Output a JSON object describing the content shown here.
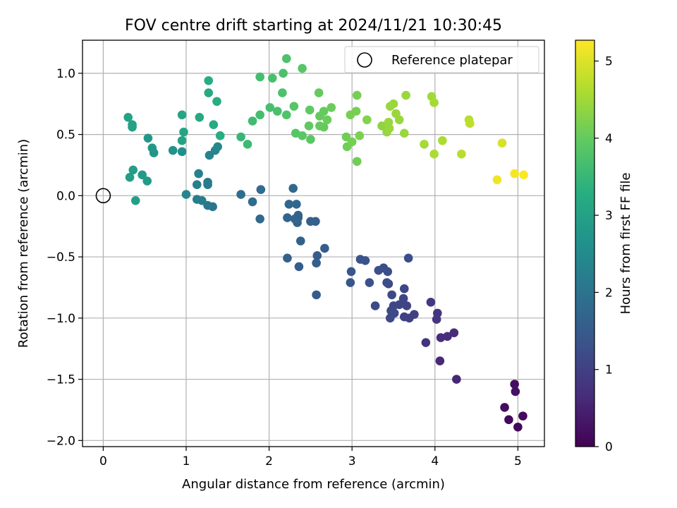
{
  "chart_data": {
    "type": "scatter",
    "title": "FOV centre drift starting at 2024/11/21 10:30:45",
    "xlabel": "Angular distance from reference (arcmin)",
    "ylabel": "Rotation from reference (arcmin)",
    "xlim": [
      -0.25,
      5.32
    ],
    "ylim": [
      -2.05,
      1.27
    ],
    "xticks": [
      0,
      1,
      2,
      3,
      4,
      5
    ],
    "yticks": [
      -2.0,
      -1.5,
      -1.0,
      -0.5,
      0.0,
      0.5,
      1.0
    ],
    "xtick_labels": [
      "0",
      "1",
      "2",
      "3",
      "4",
      "5"
    ],
    "ytick_labels": [
      "−2.0",
      "−1.5",
      "−1.0",
      "−0.5",
      "0.0",
      "0.5",
      "1.0"
    ],
    "grid": true,
    "legend": {
      "position": "top-right",
      "entries": [
        "Reference platepar"
      ]
    },
    "colorbar": {
      "label": "Hours from first FF file",
      "colormap": "viridis",
      "range": [
        0,
        5.27
      ],
      "ticks": [
        0,
        1,
        2,
        3,
        4,
        5
      ],
      "tick_labels": [
        "0",
        "1",
        "2",
        "3",
        "4",
        "5"
      ]
    },
    "reference_point": {
      "name": "Reference platepar",
      "x": 0.0,
      "y": 0.0
    },
    "series": [
      {
        "name": "FOV centre",
        "points": [
          [
            4.96,
            -1.54,
            0.2
          ],
          [
            4.97,
            -1.6,
            0.25
          ],
          [
            5.06,
            -1.8,
            0.15
          ],
          [
            5.0,
            -1.89,
            0.1
          ],
          [
            4.89,
            -1.83,
            0.12
          ],
          [
            4.84,
            -1.73,
            0.18
          ],
          [
            4.26,
            -1.5,
            0.55
          ],
          [
            4.23,
            -1.12,
            0.65
          ],
          [
            4.15,
            -1.15,
            0.7
          ],
          [
            4.07,
            -1.16,
            0.68
          ],
          [
            4.06,
            -1.35,
            0.6
          ],
          [
            3.89,
            -1.2,
            0.75
          ],
          [
            4.03,
            -0.96,
            0.8
          ],
          [
            4.02,
            -1.01,
            0.82
          ],
          [
            3.95,
            -0.87,
            0.85
          ],
          [
            3.75,
            -0.97,
            1.0
          ],
          [
            3.69,
            -1.0,
            1.0
          ],
          [
            3.63,
            -0.99,
            1.02
          ],
          [
            3.66,
            -0.9,
            1.05
          ],
          [
            3.62,
            -0.84,
            1.08
          ],
          [
            3.63,
            -0.76,
            1.1
          ],
          [
            3.57,
            -0.89,
            1.1
          ],
          [
            3.5,
            -0.9,
            1.12
          ],
          [
            3.47,
            -0.94,
            1.15
          ],
          [
            3.46,
            -1.0,
            1.15
          ],
          [
            3.51,
            -0.96,
            1.15
          ],
          [
            3.48,
            -0.81,
            1.18
          ],
          [
            3.44,
            -0.72,
            1.2
          ],
          [
            3.42,
            -0.71,
            1.22
          ],
          [
            3.43,
            -0.62,
            1.22
          ],
          [
            3.38,
            -0.59,
            1.25
          ],
          [
            3.32,
            -0.61,
            1.28
          ],
          [
            3.28,
            -0.9,
            1.2
          ],
          [
            3.21,
            -0.71,
            1.3
          ],
          [
            3.16,
            -0.53,
            1.35
          ],
          [
            3.1,
            -0.52,
            1.35
          ],
          [
            2.98,
            -0.71,
            1.4
          ],
          [
            2.99,
            -0.62,
            1.42
          ],
          [
            3.68,
            -0.51,
            1.25
          ],
          [
            2.67,
            -0.43,
            1.55
          ],
          [
            2.58,
            -0.49,
            1.55
          ],
          [
            2.57,
            -0.55,
            1.57
          ],
          [
            2.57,
            -0.81,
            1.5
          ],
          [
            2.56,
            -0.21,
            1.6
          ],
          [
            2.5,
            -0.21,
            1.6
          ],
          [
            2.38,
            -0.37,
            1.62
          ],
          [
            2.34,
            -0.22,
            1.65
          ],
          [
            2.35,
            -0.18,
            1.65
          ],
          [
            2.35,
            -0.16,
            1.67
          ],
          [
            2.36,
            -0.58,
            1.55
          ],
          [
            2.31,
            -0.19,
            1.68
          ],
          [
            2.22,
            -0.51,
            1.6
          ],
          [
            2.22,
            -0.18,
            1.7
          ],
          [
            2.24,
            -0.07,
            1.72
          ],
          [
            2.33,
            -0.07,
            1.75
          ],
          [
            2.29,
            0.06,
            1.78
          ],
          [
            1.9,
            0.05,
            1.85
          ],
          [
            1.89,
            -0.19,
            1.82
          ],
          [
            1.8,
            -0.05,
            1.88
          ],
          [
            1.66,
            0.01,
            1.92
          ],
          [
            1.32,
            -0.09,
            2.05
          ],
          [
            1.26,
            -0.08,
            2.1
          ],
          [
            1.26,
            0.11,
            2.15
          ],
          [
            1.26,
            0.09,
            2.15
          ],
          [
            1.19,
            -0.04,
            2.2
          ],
          [
            1.13,
            -0.03,
            2.22
          ],
          [
            1.13,
            0.09,
            2.25
          ],
          [
            1.15,
            0.18,
            2.28
          ],
          [
            1.0,
            0.01,
            2.4
          ],
          [
            1.28,
            0.33,
            2.35
          ],
          [
            1.35,
            0.37,
            2.4
          ],
          [
            1.38,
            0.4,
            2.42
          ],
          [
            0.95,
            0.36,
            2.6
          ],
          [
            0.84,
            0.37,
            2.65
          ],
          [
            0.61,
            0.35,
            2.75
          ],
          [
            0.59,
            0.39,
            2.78
          ],
          [
            0.54,
            0.47,
            2.8
          ],
          [
            0.53,
            0.12,
            2.82
          ],
          [
            0.47,
            0.17,
            2.85
          ],
          [
            0.36,
            0.21,
            2.9
          ],
          [
            0.32,
            0.15,
            2.92
          ],
          [
            0.39,
            -0.04,
            2.95
          ],
          [
            0.35,
            0.56,
            3.0
          ],
          [
            0.35,
            0.58,
            3.0
          ],
          [
            0.3,
            0.64,
            3.02
          ],
          [
            0.95,
            0.45,
            3.05
          ],
          [
            0.97,
            0.52,
            3.1
          ],
          [
            0.95,
            0.66,
            3.1
          ],
          [
            1.16,
            0.64,
            3.15
          ],
          [
            1.33,
            0.58,
            3.2
          ],
          [
            1.41,
            0.49,
            3.25
          ],
          [
            1.27,
            0.84,
            3.2
          ],
          [
            1.37,
            0.77,
            3.25
          ],
          [
            1.27,
            0.94,
            3.25
          ],
          [
            1.66,
            0.48,
            3.5
          ],
          [
            1.74,
            0.42,
            3.55
          ],
          [
            1.8,
            0.61,
            3.6
          ],
          [
            1.89,
            0.66,
            3.65
          ],
          [
            1.89,
            0.97,
            3.65
          ],
          [
            2.04,
            0.96,
            3.7
          ],
          [
            2.01,
            0.72,
            3.7
          ],
          [
            2.1,
            0.69,
            3.72
          ],
          [
            2.16,
            0.84,
            3.75
          ],
          [
            2.17,
            1.0,
            3.75
          ],
          [
            2.21,
            1.12,
            3.75
          ],
          [
            2.21,
            0.66,
            3.8
          ],
          [
            2.3,
            0.73,
            3.85
          ],
          [
            2.32,
            0.51,
            3.85
          ],
          [
            2.4,
            1.04,
            3.85
          ],
          [
            2.4,
            0.49,
            3.9
          ],
          [
            2.5,
            0.46,
            3.9
          ],
          [
            2.49,
            0.7,
            3.95
          ],
          [
            2.48,
            0.57,
            3.95
          ],
          [
            2.6,
            0.84,
            4.0
          ],
          [
            2.61,
            0.65,
            4.0
          ],
          [
            2.61,
            0.57,
            4.0
          ],
          [
            2.66,
            0.56,
            4.0
          ],
          [
            2.66,
            0.69,
            4.0
          ],
          [
            2.7,
            0.62,
            4.05
          ],
          [
            2.75,
            0.72,
            4.05
          ],
          [
            2.93,
            0.48,
            4.1
          ],
          [
            2.94,
            0.4,
            4.1
          ],
          [
            2.98,
            0.66,
            4.15
          ],
          [
            3.0,
            0.44,
            4.15
          ],
          [
            3.05,
            0.69,
            4.15
          ],
          [
            3.06,
            0.82,
            4.15
          ],
          [
            3.06,
            0.28,
            4.1
          ],
          [
            3.09,
            0.49,
            4.2
          ],
          [
            3.18,
            0.62,
            4.25
          ],
          [
            3.36,
            0.57,
            4.35
          ],
          [
            3.42,
            0.52,
            4.4
          ],
          [
            3.44,
            0.6,
            4.45
          ],
          [
            3.45,
            0.55,
            4.45
          ],
          [
            3.46,
            0.73,
            4.45
          ],
          [
            3.5,
            0.75,
            4.45
          ],
          [
            3.53,
            0.67,
            4.45
          ],
          [
            3.57,
            0.62,
            4.45
          ],
          [
            3.63,
            0.51,
            4.45
          ],
          [
            3.65,
            0.82,
            4.45
          ],
          [
            3.87,
            0.42,
            4.55
          ],
          [
            3.96,
            0.81,
            4.5
          ],
          [
            3.99,
            0.76,
            4.55
          ],
          [
            3.99,
            0.34,
            4.6
          ],
          [
            4.09,
            0.45,
            4.6
          ],
          [
            4.32,
            0.34,
            4.7
          ],
          [
            4.41,
            0.62,
            4.7
          ],
          [
            4.42,
            0.59,
            4.75
          ],
          [
            4.75,
            0.13,
            5.15
          ],
          [
            4.81,
            0.43,
            4.95
          ],
          [
            4.96,
            0.18,
            5.2
          ],
          [
            5.07,
            0.17,
            5.25
          ]
        ]
      }
    ]
  }
}
